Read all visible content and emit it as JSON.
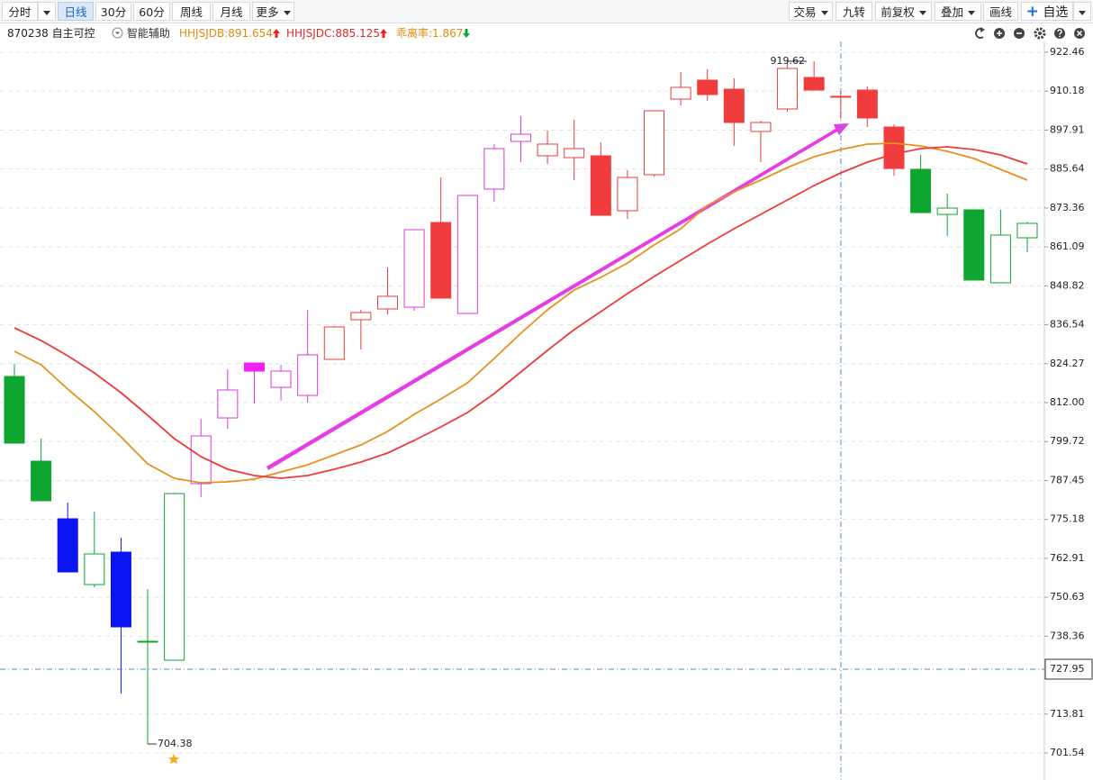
{
  "toolbar": {
    "left": [
      "分时",
      "日线",
      "30分",
      "60分",
      "周线",
      "月线",
      "更多"
    ],
    "right": [
      "交易",
      "九转",
      "前复权",
      "叠加",
      "画线",
      "自选"
    ]
  },
  "info": {
    "code": "870238 自主可控",
    "assist": "智能辅助",
    "bias": "乖离率:1.867"
  },
  "chart_data": {
    "type": "candlestick",
    "open": [
      820.23,
      793.54,
      775.37,
      754.64,
      764.86,
      736.75,
      730.79,
      786.44,
      807.17,
      824.49,
      816.83,
      814.27,
      825.63,
      838.13,
      841.53,
      842.1,
      868.79,
      840.11,
      879.3,
      894.35,
      889.81,
      889.24,
      889.81,
      872.48,
      883.84,
      907.69,
      913.66,
      910.82,
      897.47,
      904.57,
      914.51,
      908.55,
      910.53,
      898.89,
      885.55,
      871.34,
      872.77,
      849.77,
      863.96
    ],
    "high": [
      824.21,
      800.64,
      780.48,
      777.64,
      769.42,
      753.22,
      783.6,
      806.89,
      822.51,
      824.49,
      823.93,
      841.25,
      836.14,
      841.25,
      854.59,
      866.52,
      882.99,
      877.31,
      893.5,
      902.3,
      897.75,
      901.16,
      894.06,
      885.26,
      904.0,
      916.21,
      917.06,
      914.22,
      900.88,
      919.62,
      919.62,
      910.25,
      911.67,
      899.74,
      890.09,
      877.88,
      872.77,
      872.77,
      869.07
    ],
    "low": [
      799.22,
      781.05,
      758.61,
      753.79,
      720.28,
      704.38,
      730.79,
      782.18,
      803.77,
      811.72,
      812.57,
      812.0,
      825.63,
      828.75,
      839.83,
      840.97,
      844.94,
      840.11,
      875.32,
      887.82,
      887.25,
      882.14,
      871.06,
      869.93,
      883.27,
      905.71,
      907.13,
      892.93,
      887.82,
      903.72,
      910.53,
      901.45,
      898.89,
      883.56,
      871.91,
      864.53,
      850.62,
      849.77,
      859.42
    ],
    "close": [
      799.22,
      781.05,
      758.61,
      764.29,
      741.29,
      736.75,
      783.32,
      801.5,
      815.98,
      821.94,
      821.94,
      827.05,
      835.85,
      840.4,
      845.51,
      866.52,
      844.94,
      877.31,
      892.08,
      896.62,
      893.5,
      892.08,
      871.06,
      882.99,
      904.0,
      911.39,
      909.11,
      900.31,
      900.31,
      917.35,
      910.53,
      908.55,
      901.73,
      885.83,
      871.91,
      873.33,
      850.62,
      864.82,
      868.51
    ],
    "colors": [
      "#0ea630",
      "#0ea630",
      "#0a14f0",
      "#0ea630",
      "#0a14f0",
      "#0ea630",
      "#0ea630",
      "#d63cd6",
      "#d63cd6",
      "#f020f0",
      "#d63cd6",
      "#d63cd6",
      "#e83c3c",
      "#e83c3c",
      "#e83c3c",
      "#d63cd6",
      "#f03c3c",
      "#d63cd6",
      "#d63cd6",
      "#d63cd6",
      "#e83c3c",
      "#e83c3c",
      "#f03c3c",
      "#e83c3c",
      "#e83c3c",
      "#e83c3c",
      "#f03c3c",
      "#f03c3c",
      "#e83c3c",
      "#e83c3c",
      "#f03c3c",
      "#e83c3c",
      "#f03c3c",
      "#f03c3c",
      "#0ea630",
      "#0ea630",
      "#0ea630",
      "#0ea630",
      "#0ea630"
    ],
    "series": [
      {
        "legend": "HHJSJDB:891.654",
        "color": "#e8901e",
        "values": [
          828.19,
          823.93,
          816.26,
          809.16,
          801.21,
          792.69,
          788.15,
          786.73,
          787.01,
          787.86,
          790.13,
          792.41,
          795.53,
          798.65,
          802.91,
          808.31,
          813.14,
          818.25,
          825.91,
          833.86,
          841.25,
          847.49,
          851.47,
          856.01,
          861.69,
          866.8,
          874.19,
          878.45,
          882.14,
          886.11,
          889.52,
          891.79,
          893.5,
          893.78,
          892.93,
          891.22,
          888.95,
          885.55,
          882.14
        ]
      },
      {
        "legend": "HHJSJDC:885.125",
        "color": "#ee3a3a",
        "values": [
          835.57,
          831.59,
          826.77,
          821.37,
          815.12,
          808.02,
          800.64,
          794.96,
          790.99,
          789.0,
          788.15,
          789.0,
          790.99,
          793.26,
          796.1,
          800.07,
          804.33,
          808.88,
          814.84,
          821.65,
          828.47,
          835.0,
          840.68,
          846.36,
          851.75,
          856.87,
          861.98,
          866.8,
          871.35,
          875.89,
          880.43,
          884.41,
          887.82,
          890.37,
          892.08,
          892.64,
          891.79,
          890.09,
          887.25
        ]
      }
    ],
    "ylim": [
      693.02,
      926.15
    ],
    "yticks": [
      922.46,
      910.18,
      897.91,
      885.64,
      873.36,
      861.09,
      848.82,
      836.54,
      824.27,
      {
        "value": 812,
        "label": "812.00"
      },
      799.72,
      787.45,
      775.18,
      762.91,
      750.63,
      738.36,
      713.81,
      701.54
    ],
    "grid": true,
    "crosshair": 727.95
  }
}
